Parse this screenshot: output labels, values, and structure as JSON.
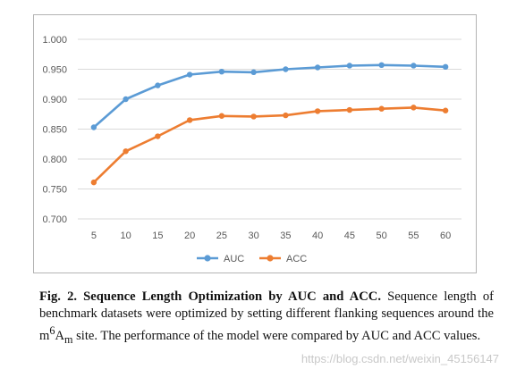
{
  "chart_data": {
    "type": "line",
    "x": [
      5,
      10,
      15,
      20,
      25,
      30,
      35,
      40,
      45,
      50,
      55,
      60
    ],
    "series": [
      {
        "name": "AUC",
        "color": "#5b9bd5",
        "values": [
          0.853,
          0.9,
          0.923,
          0.941,
          0.946,
          0.945,
          0.95,
          0.953,
          0.956,
          0.957,
          0.956,
          0.954
        ]
      },
      {
        "name": "ACC",
        "color": "#ed7d31",
        "values": [
          0.761,
          0.813,
          0.838,
          0.865,
          0.872,
          0.871,
          0.873,
          0.88,
          0.882,
          0.884,
          0.886,
          0.881
        ]
      }
    ],
    "ylim": [
      0.7,
      1.0
    ],
    "yticks": [
      "0.700",
      "0.750",
      "0.800",
      "0.850",
      "0.900",
      "0.950",
      "1.000"
    ],
    "xticks": [
      "5",
      "10",
      "15",
      "20",
      "25",
      "30",
      "35",
      "40",
      "45",
      "50",
      "55",
      "60"
    ],
    "grid": true,
    "legend_position": "bottom",
    "title": "",
    "xlabel": "",
    "ylabel": ""
  },
  "caption": {
    "label": "Fig. 2.",
    "title": "Sequence Length Optimization by AUC and ACC.",
    "text_before_sup": " Sequence length of benchmark datasets were optimized by setting different flanking sequences around the m",
    "sup": "6",
    "text_a": "A",
    "sub": "m",
    "text_after": " site. The performance of the model were compared by AUC and ACC values."
  },
  "watermark": "https://blog.csdn.net/weixin_45156147"
}
